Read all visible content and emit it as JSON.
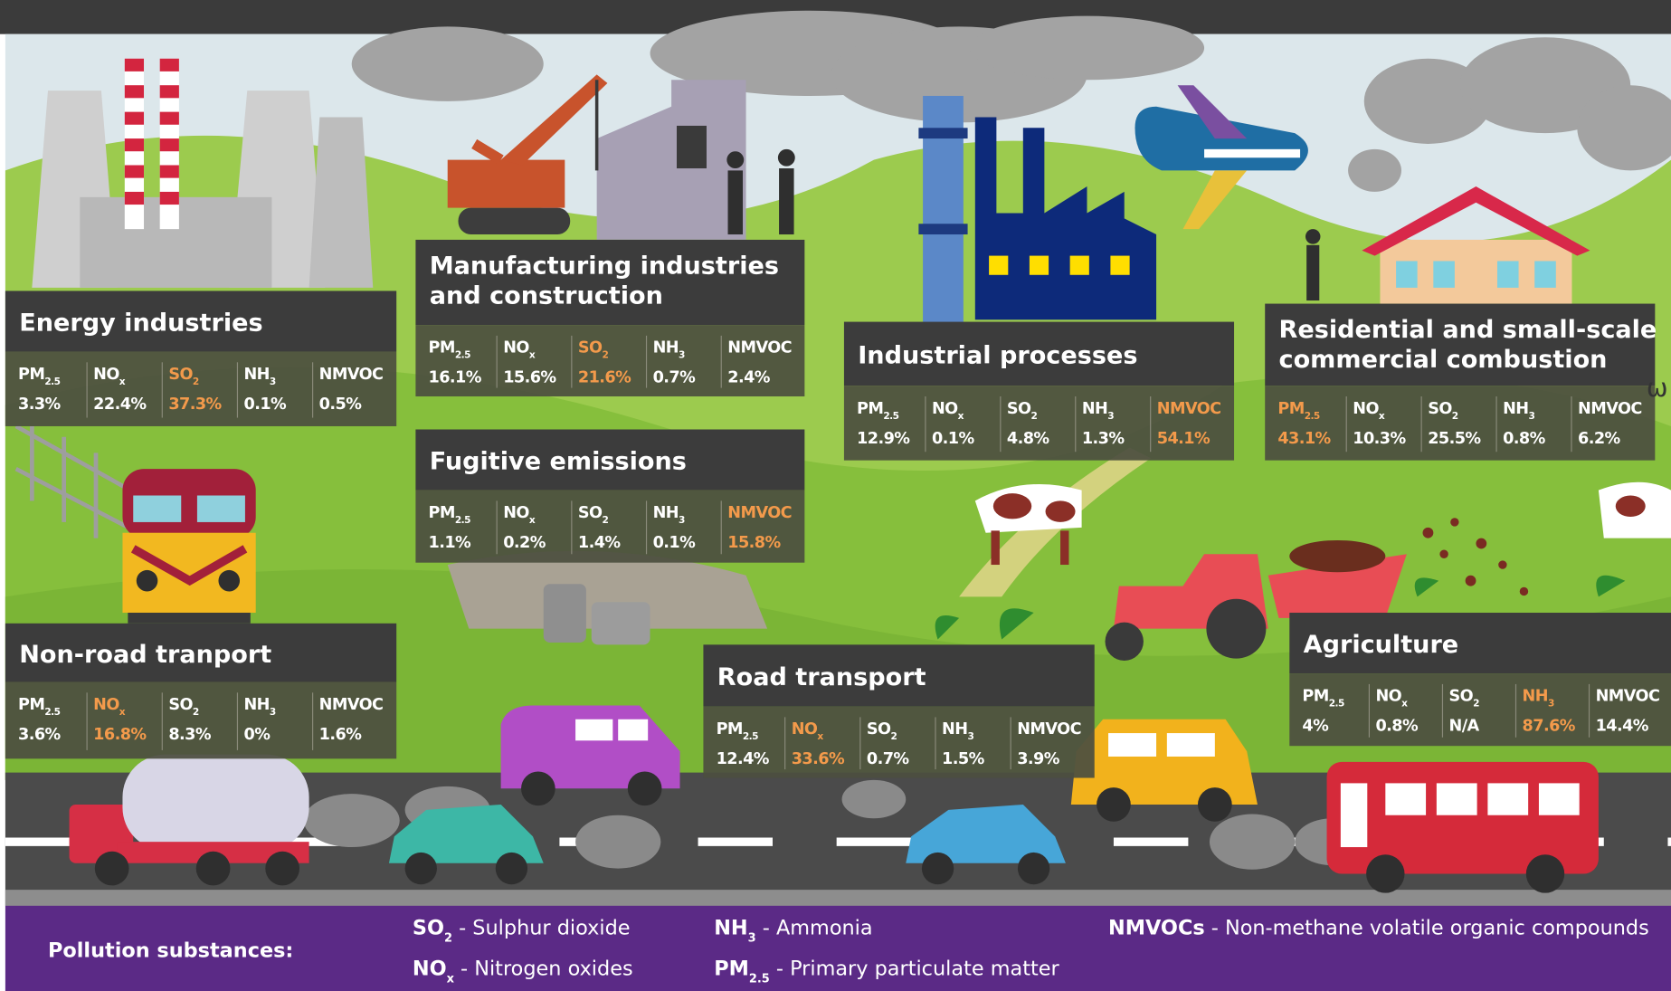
{
  "pollutants": [
    {
      "base": "PM",
      "sub": "2.5"
    },
    {
      "base": "NO",
      "sub": "x"
    },
    {
      "base": "SO",
      "sub": "2"
    },
    {
      "base": "NH",
      "sub": "3"
    },
    {
      "base": "NMVOC",
      "sub": ""
    }
  ],
  "panels": [
    {
      "title_lines": [
        "Energy industries"
      ],
      "stats": [
        {
          "value": "3.3%",
          "color": "#ffffff"
        },
        {
          "value": "22.4%",
          "color": "#ffffff"
        },
        {
          "value": "37.3%",
          "color": "#f39a4b"
        },
        {
          "value": "0.1%",
          "color": "#ffffff"
        },
        {
          "value": "0.5%",
          "color": "#ffffff"
        }
      ]
    },
    {
      "title_lines": [
        "Manufacturing industries",
        "and construction"
      ],
      "stats": [
        {
          "value": "16.1%",
          "color": "#ffffff"
        },
        {
          "value": "15.6%",
          "color": "#ffffff"
        },
        {
          "value": "21.6%",
          "color": "#f39a4b"
        },
        {
          "value": "0.7%",
          "color": "#ffffff"
        },
        {
          "value": "2.4%",
          "color": "#ffffff"
        }
      ]
    },
    {
      "title_lines": [
        "Fugitive emissions"
      ],
      "stats": [
        {
          "value": "1.1%",
          "color": "#ffffff"
        },
        {
          "value": "0.2%",
          "color": "#ffffff"
        },
        {
          "value": "1.4%",
          "color": "#ffffff"
        },
        {
          "value": "0.1%",
          "color": "#ffffff"
        },
        {
          "value": "15.8%",
          "color": "#f39a4b"
        }
      ]
    },
    {
      "title_lines": [
        "Industrial processes"
      ],
      "stats": [
        {
          "value": "12.9%",
          "color": "#ffffff"
        },
        {
          "value": "0.1%",
          "color": "#ffffff"
        },
        {
          "value": "4.8%",
          "color": "#ffffff"
        },
        {
          "value": "1.3%",
          "color": "#ffffff"
        },
        {
          "value": "54.1%",
          "color": "#f39a4b"
        }
      ]
    },
    {
      "title_lines": [
        "Residential and small-scale",
        "commercial combustion"
      ],
      "stats": [
        {
          "value": "43.1%",
          "color": "#f39a4b"
        },
        {
          "value": "10.3%",
          "color": "#ffffff"
        },
        {
          "value": "25.5%",
          "color": "#ffffff"
        },
        {
          "value": "0.8%",
          "color": "#ffffff"
        },
        {
          "value": "6.2%",
          "color": "#ffffff"
        }
      ]
    },
    {
      "title_lines": [
        "Non-road tranport"
      ],
      "stats": [
        {
          "value": "3.6%",
          "color": "#ffffff"
        },
        {
          "value": "16.8%",
          "color": "#f39a4b"
        },
        {
          "value": "8.3%",
          "color": "#ffffff"
        },
        {
          "value": "0%",
          "color": "#ffffff"
        },
        {
          "value": "1.6%",
          "color": "#ffffff"
        }
      ]
    },
    {
      "title_lines": [
        "Road transport"
      ],
      "stats": [
        {
          "value": "12.4%",
          "color": "#ffffff"
        },
        {
          "value": "33.6%",
          "color": "#f39a4b"
        },
        {
          "value": "0.7%",
          "color": "#ffffff"
        },
        {
          "value": "1.5%",
          "color": "#ffffff"
        },
        {
          "value": "3.9%",
          "color": "#ffffff"
        }
      ]
    },
    {
      "title_lines": [
        "Agriculture"
      ],
      "stats": [
        {
          "value": "4%",
          "color": "#ffffff"
        },
        {
          "value": "0.8%",
          "color": "#ffffff"
        },
        {
          "value": "N/A",
          "color": "#ffffff"
        },
        {
          "value": "87.6%",
          "color": "#f39a4b"
        },
        {
          "value": "14.4%",
          "color": "#ffffff"
        }
      ]
    }
  ],
  "legend": {
    "title": "Pollution substances:",
    "items": [
      {
        "symbol": {
          "base": "SO",
          "sub": "2"
        },
        "text": " - Sulphur dioxide"
      },
      {
        "symbol": {
          "base": "NO",
          "sub": "x"
        },
        "text": " - Nitrogen oxides"
      },
      {
        "symbol": {
          "base": "NH",
          "sub": "3"
        },
        "text": " - Ammonia"
      },
      {
        "symbol": {
          "base": "PM",
          "sub": "2.5"
        },
        "text": " - Primary particulate matter"
      },
      {
        "symbol": {
          "base": "NMVOCs",
          "sub": ""
        },
        "text": " - Non-methane volatile organic compounds"
      }
    ]
  },
  "stray_mark": "ω"
}
